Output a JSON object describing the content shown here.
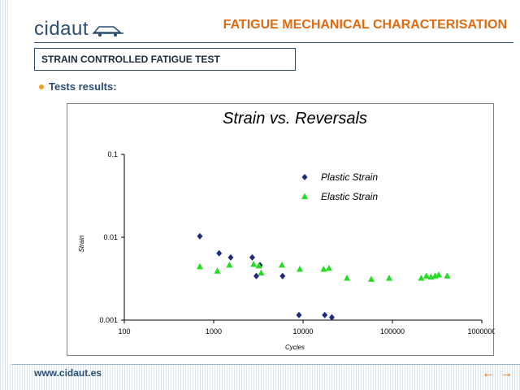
{
  "header": {
    "logo_text": "cidaut",
    "title": "FATIGUE MECHANICAL CHARACTERISATION",
    "subtitle": "STRAIN CONTROLLED FATIGUE TEST"
  },
  "section": {
    "label": "Tests results:"
  },
  "footer": {
    "url": "www.cidaut.es",
    "prev_icon": "left-arrow-icon",
    "next_icon": "right-arrow-icon"
  },
  "colors": {
    "accent": "#e06a10",
    "brand": "#2a4d73",
    "plastic": "#1f2a7a",
    "elastic": "#22dd22"
  },
  "chart_data": {
    "type": "scatter",
    "title": "Strain vs. Reversals",
    "xlabel": "Cycles",
    "ylabel": "Strain",
    "x_scale": "log",
    "y_scale": "log",
    "xlim": [
      100,
      1000000
    ],
    "ylim": [
      0.001,
      0.1
    ],
    "x_ticks": [
      "100",
      "1000",
      "10000",
      "100000",
      "1000000"
    ],
    "y_ticks": [
      "0.001",
      "0.01",
      "0.1"
    ],
    "grid": false,
    "legend": "top-right",
    "series": [
      {
        "name": "Plastic Strain",
        "marker": "diamond",
        "points": [
          [
            700,
            0.0103
          ],
          [
            1150,
            0.0064
          ],
          [
            1550,
            0.0057
          ],
          [
            2700,
            0.0057
          ],
          [
            3300,
            0.0046
          ],
          [
            3000,
            0.0034
          ],
          [
            5900,
            0.0034
          ],
          [
            9000,
            0.00115
          ],
          [
            17500,
            0.00115
          ],
          [
            21000,
            0.00108
          ]
        ]
      },
      {
        "name": "Elastic Strain",
        "marker": "triangle",
        "points": [
          [
            700,
            0.0044
          ],
          [
            1100,
            0.0039
          ],
          [
            1500,
            0.0046
          ],
          [
            2800,
            0.0047
          ],
          [
            3200,
            0.0045
          ],
          [
            3400,
            0.0037
          ],
          [
            5800,
            0.0046
          ],
          [
            9200,
            0.0041
          ],
          [
            17000,
            0.0041
          ],
          [
            19500,
            0.0042
          ],
          [
            31000,
            0.0032
          ],
          [
            58000,
            0.0031
          ],
          [
            92000,
            0.0032
          ],
          [
            210000,
            0.0032
          ],
          [
            240000,
            0.0034
          ],
          [
            270000,
            0.0033
          ],
          [
            300000,
            0.0034
          ],
          [
            330000,
            0.0035
          ],
          [
            410000,
            0.0034
          ]
        ]
      }
    ]
  }
}
